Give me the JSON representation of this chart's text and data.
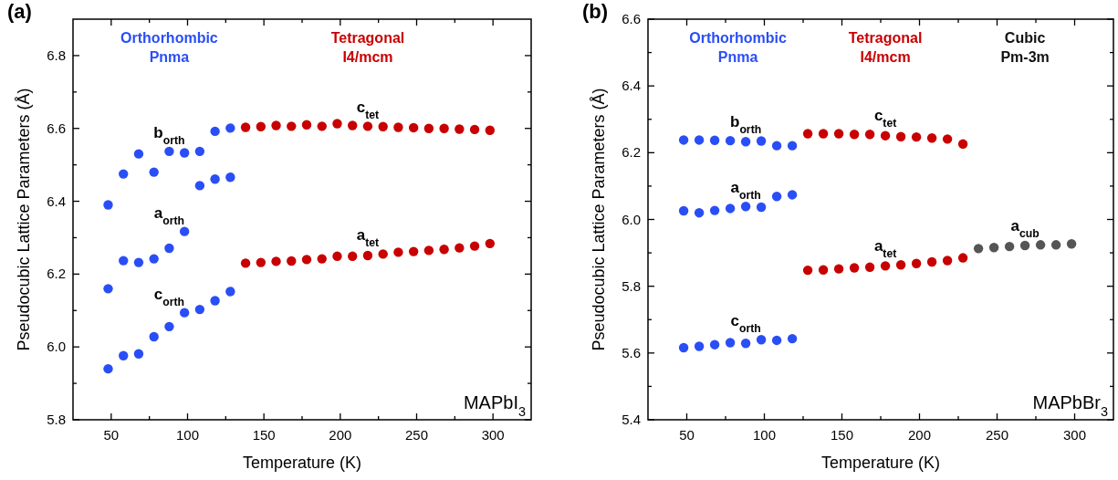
{
  "chart_data": [
    {
      "type": "scatter",
      "title": "(a)",
      "xlabel": "Temperature (K)",
      "ylabel": "Pseudocubic Lattice Parameters (Å)",
      "marker": "circle",
      "xlim": [
        25,
        325
      ],
      "xticks": [
        50,
        {
          "value": 75,
          "label": null
        },
        100,
        {
          "value": 125,
          "label": null
        },
        150,
        {
          "value": 175,
          "label": null
        },
        200,
        {
          "value": 225,
          "label": null
        },
        250,
        {
          "value": 275,
          "label": null
        },
        300
      ],
      "ylim": [
        5.8,
        6.9
      ],
      "yticks": [
        5.8,
        {
          "value": 5.9,
          "label": null
        },
        {
          "value": 6,
          "label": "6.0"
        },
        {
          "value": 6.1,
          "label": null
        },
        6.2,
        {
          "value": 6.3,
          "label": null
        },
        6.4,
        {
          "value": 6.5,
          "label": null
        },
        6.6,
        {
          "value": 6.7,
          "label": null
        },
        6.8
      ],
      "series": [
        {
          "name": "b$_{orth}$",
          "color": "#2a4ef5",
          "x": [
            48,
            58,
            68,
            78,
            88,
            98,
            108,
            118,
            128
          ],
          "values": [
            6.39,
            6.475,
            6.53,
            6.48,
            6.537,
            6.533,
            6.537,
            6.592,
            6.601
          ]
        },
        {
          "name": "a$_{orth}$",
          "color": "#2a4ef5",
          "x": [
            48,
            58,
            68,
            78,
            88,
            98,
            108,
            118,
            128
          ],
          "values": [
            6.16,
            6.237,
            6.232,
            6.242,
            6.271,
            6.317,
            6.443,
            6.461,
            6.466
          ]
        },
        {
          "name": "c$_{orth}$",
          "color": "#2a4ef5",
          "x": [
            48,
            58,
            68,
            78,
            88,
            98,
            108,
            118,
            128
          ],
          "values": [
            5.94,
            5.976,
            5.981,
            6.028,
            6.056,
            6.094,
            6.103,
            6.127,
            6.152
          ]
        },
        {
          "name": "c$_{tet}$",
          "color": "#c80000",
          "x": [
            138,
            148,
            158,
            168,
            178,
            188,
            198,
            208,
            218,
            228,
            238,
            248,
            258,
            268,
            278,
            288,
            298
          ],
          "values": [
            6.603,
            6.605,
            6.608,
            6.606,
            6.61,
            6.606,
            6.613,
            6.608,
            6.606,
            6.605,
            6.603,
            6.602,
            6.6,
            6.6,
            6.598,
            6.597,
            6.595
          ]
        },
        {
          "name": "a$_{tet}$",
          "color": "#c80000",
          "x": [
            138,
            148,
            158,
            168,
            178,
            188,
            198,
            208,
            218,
            228,
            238,
            248,
            258,
            268,
            278,
            288,
            298
          ],
          "values": [
            6.23,
            6.232,
            6.235,
            6.236,
            6.24,
            6.242,
            6.249,
            6.249,
            6.251,
            6.255,
            6.26,
            6.262,
            6.265,
            6.268,
            6.272,
            6.277,
            6.284
          ]
        }
      ],
      "annotations": [
        "Orthorhombic\nPnma",
        "Tetragonal\nI4/mcm",
        "MAPbI$_{3}$"
      ]
    },
    {
      "type": "scatter",
      "title": "(b)",
      "xlabel": "Temperature (K)",
      "ylabel": "Pseudocubic Lattice Parameters (Å)",
      "marker": "circle",
      "xlim": [
        25,
        325
      ],
      "xticks": [
        50,
        {
          "value": 75,
          "label": null
        },
        100,
        {
          "value": 125,
          "label": null
        },
        150,
        {
          "value": 175,
          "label": null
        },
        200,
        {
          "value": 225,
          "label": null
        },
        250,
        {
          "value": 275,
          "label": null
        },
        300
      ],
      "ylim": [
        5.4,
        6.6
      ],
      "yticks": [
        5.4,
        {
          "value": 5.5,
          "label": null
        },
        5.6,
        {
          "value": 5.7,
          "label": null
        },
        5.8,
        {
          "value": 5.9,
          "label": null
        },
        {
          "value": 6,
          "label": "6.0"
        },
        {
          "value": 6.1,
          "label": null
        },
        6.2,
        {
          "value": 6.3,
          "label": null
        },
        6.4,
        {
          "value": 6.5,
          "label": null
        },
        6.6
      ],
      "series": [
        {
          "name": "b$_{orth}$",
          "color": "#2a4ef5",
          "x": [
            48,
            58,
            68,
            78,
            88,
            98,
            108,
            118
          ],
          "values": [
            6.238,
            6.238,
            6.237,
            6.236,
            6.233,
            6.235,
            6.221,
            6.221
          ]
        },
        {
          "name": "a$_{orth}$",
          "color": "#2a4ef5",
          "x": [
            48,
            58,
            68,
            78,
            88,
            98,
            108,
            118
          ],
          "values": [
            6.026,
            6.02,
            6.027,
            6.033,
            6.039,
            6.037,
            6.069,
            6.074
          ]
        },
        {
          "name": "c$_{orth}$",
          "color": "#2a4ef5",
          "x": [
            48,
            58,
            68,
            78,
            88,
            98,
            108,
            118
          ],
          "values": [
            5.616,
            5.62,
            5.625,
            5.631,
            5.629,
            5.64,
            5.638,
            5.643
          ]
        },
        {
          "name": "c$_{tet}$",
          "color": "#c80000",
          "x": [
            128,
            138,
            148,
            158,
            168,
            178,
            188,
            198,
            208,
            218,
            228
          ],
          "values": [
            6.257,
            6.257,
            6.257,
            6.255,
            6.255,
            6.251,
            6.248,
            6.247,
            6.244,
            6.241,
            6.226
          ]
        },
        {
          "name": "a$_{tet}$",
          "color": "#c80000",
          "x": [
            128,
            138,
            148,
            158,
            168,
            178,
            188,
            198,
            208,
            218,
            228
          ],
          "values": [
            5.848,
            5.849,
            5.852,
            5.855,
            5.857,
            5.861,
            5.864,
            5.868,
            5.873,
            5.877,
            5.885
          ]
        },
        {
          "name": "a$_{cub}$",
          "color": "#555555",
          "x": [
            238,
            248,
            258,
            268,
            278,
            288,
            298
          ],
          "values": [
            5.913,
            5.916,
            5.919,
            5.922,
            5.924,
            5.924,
            5.927
          ]
        }
      ],
      "annotations": [
        "Orthorhombic\nPnma",
        "Tetragonal\nI4/mcm",
        "Cubic\nPm-3m",
        "MAPbBr$_{3}$"
      ]
    }
  ]
}
